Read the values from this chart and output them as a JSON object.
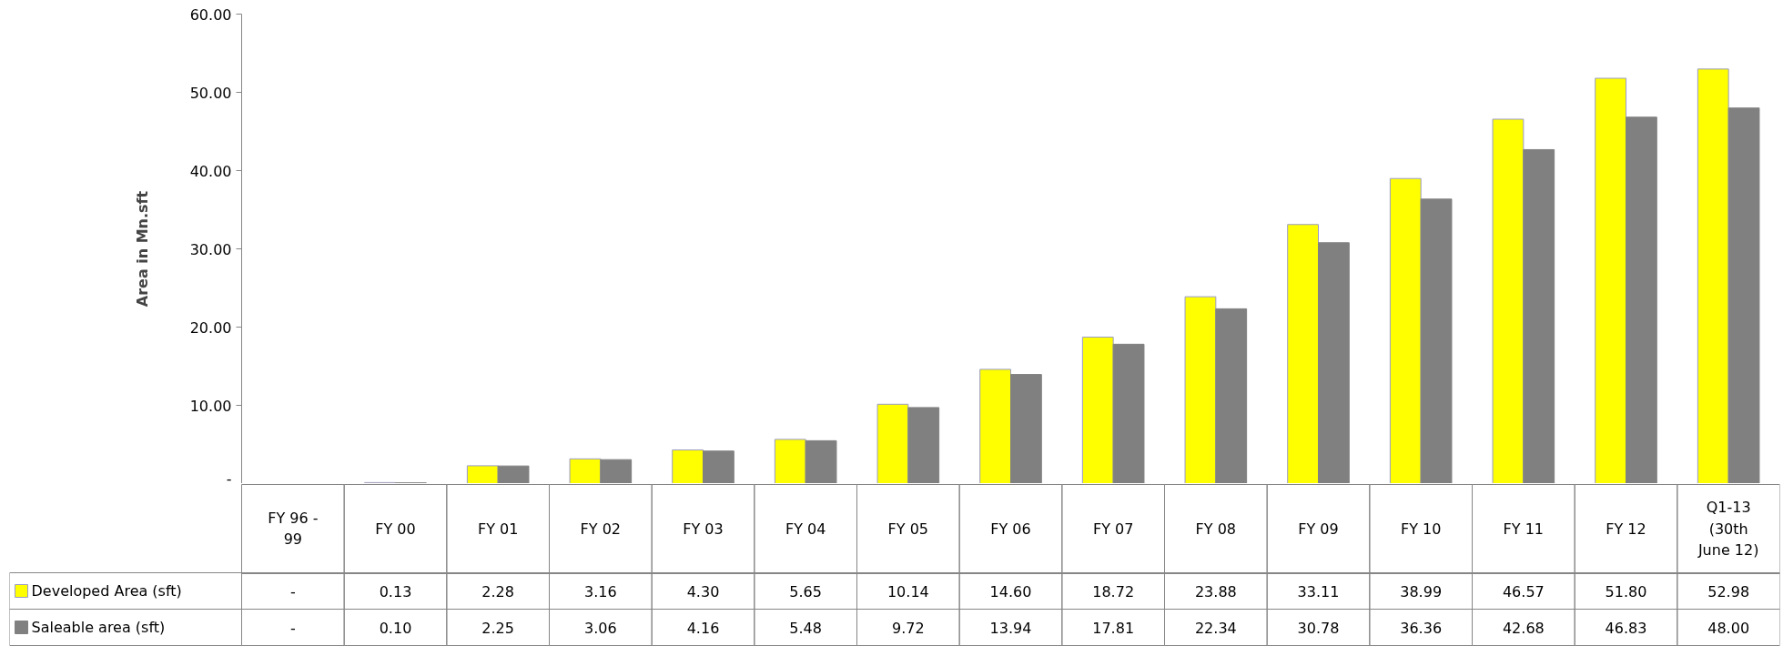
{
  "chart_data": {
    "type": "bar",
    "ylabel": "Area in Mn.sft",
    "categories": [
      "FY 96 - 99",
      "FY 00",
      "FY 01",
      "FY 02",
      "FY 03",
      "FY 04",
      "FY 05",
      "FY 06",
      "FY 07",
      "FY 08",
      "FY 09",
      "FY 10",
      "FY 11",
      "FY 12",
      "Q1-13 (30th June 12)"
    ],
    "series": [
      {
        "name": "Developed Area (sft)",
        "color": "#ffff00",
        "values": [
          0,
          0.13,
          2.28,
          3.16,
          4.3,
          5.65,
          10.14,
          14.6,
          18.72,
          23.88,
          33.11,
          38.99,
          46.57,
          51.8,
          52.98
        ],
        "value_labels": [
          "-",
          "0.13",
          "2.28",
          "3.16",
          "4.30",
          "5.65",
          "10.14",
          "14.60",
          "18.72",
          "23.88",
          "33.11",
          "38.99",
          "46.57",
          "51.80",
          "52.98"
        ]
      },
      {
        "name": "Saleable area (sft)",
        "color": "#808080",
        "values": [
          0,
          0.1,
          2.25,
          3.06,
          4.16,
          5.48,
          9.72,
          13.94,
          17.81,
          22.34,
          30.78,
          36.36,
          42.68,
          46.83,
          48.0
        ],
        "value_labels": [
          "-",
          "0.10",
          "2.25",
          "3.06",
          "4.16",
          "5.48",
          "9.72",
          "13.94",
          "17.81",
          "22.34",
          "30.78",
          "36.36",
          "42.68",
          "46.83",
          "48.00"
        ]
      }
    ],
    "ylim": [
      0,
      60
    ],
    "yticks": [
      {
        "value": 0,
        "label": "-"
      },
      {
        "value": 10,
        "label": "10.00"
      },
      {
        "value": 20,
        "label": "20.00"
      },
      {
        "value": 30,
        "label": "30.00"
      },
      {
        "value": 40,
        "label": "40.00"
      },
      {
        "value": 50,
        "label": "50.00"
      },
      {
        "value": 60,
        "label": "60.00"
      }
    ],
    "grid": false,
    "legend": "bottom left"
  }
}
